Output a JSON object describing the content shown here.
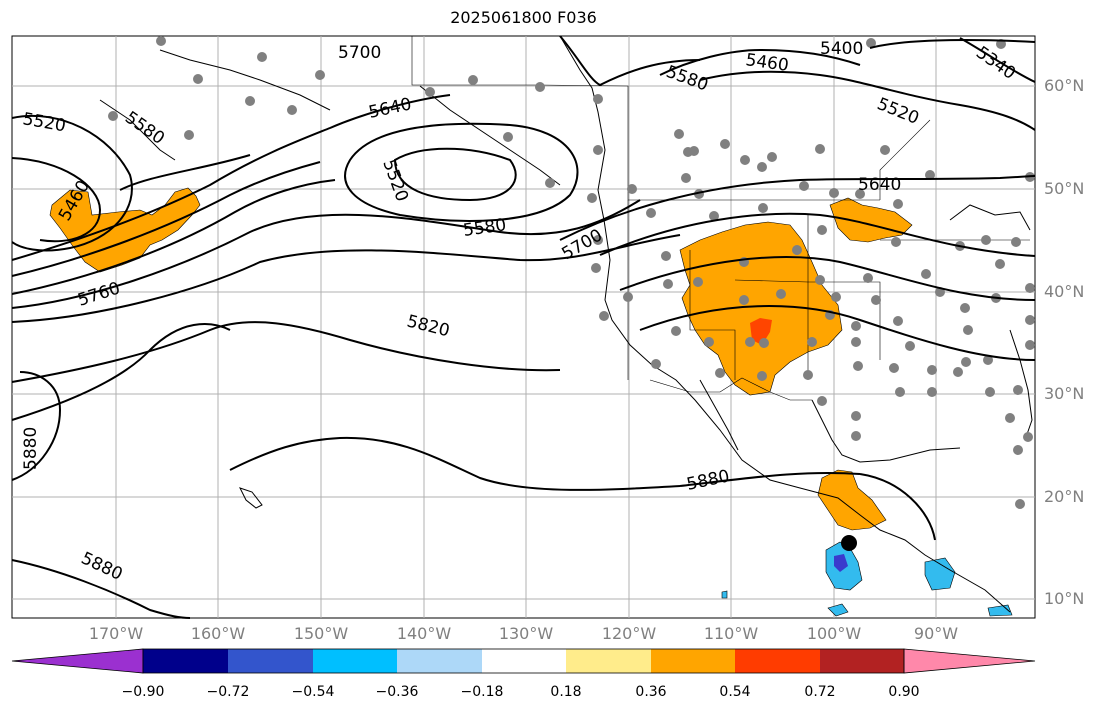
{
  "title": "2025061800 F036",
  "lat_labels": [
    "60°N",
    "50°N",
    "40°N",
    "30°N",
    "20°N",
    "10°N"
  ],
  "lon_labels": [
    "170°W",
    "160°W",
    "150°W",
    "140°W",
    "130°W",
    "120°W",
    "110°W",
    "100°W",
    "90°W"
  ],
  "contour_labels": [
    "5700",
    "5400",
    "5460",
    "5340",
    "5580",
    "5520",
    "5640",
    "5520",
    "5520",
    "5580",
    "5460",
    "5640",
    "5580",
    "5700",
    "5760",
    "5820",
    "5880",
    "5880",
    "5880"
  ],
  "colorbar": {
    "ticks": [
      "−0.90",
      "−0.72",
      "−0.54",
      "−0.36",
      "−0.18",
      "0.18",
      "0.36",
      "0.54",
      "0.72",
      "0.90"
    ],
    "colors": [
      "#9b30d0",
      "#00008b",
      "#3355cc",
      "#00bfff",
      "#add8f8",
      "#ffffff",
      "#ffec8b",
      "#ffa500",
      "#ff3c00",
      "#b22222",
      "#ff88aa"
    ]
  },
  "colors": {
    "positive_fill": "#ffa500",
    "strong_positive_fill": "#ff4500",
    "negative_fill": "#33bbee",
    "station_marker": "#808080",
    "grid": "#b0b0b0"
  }
}
